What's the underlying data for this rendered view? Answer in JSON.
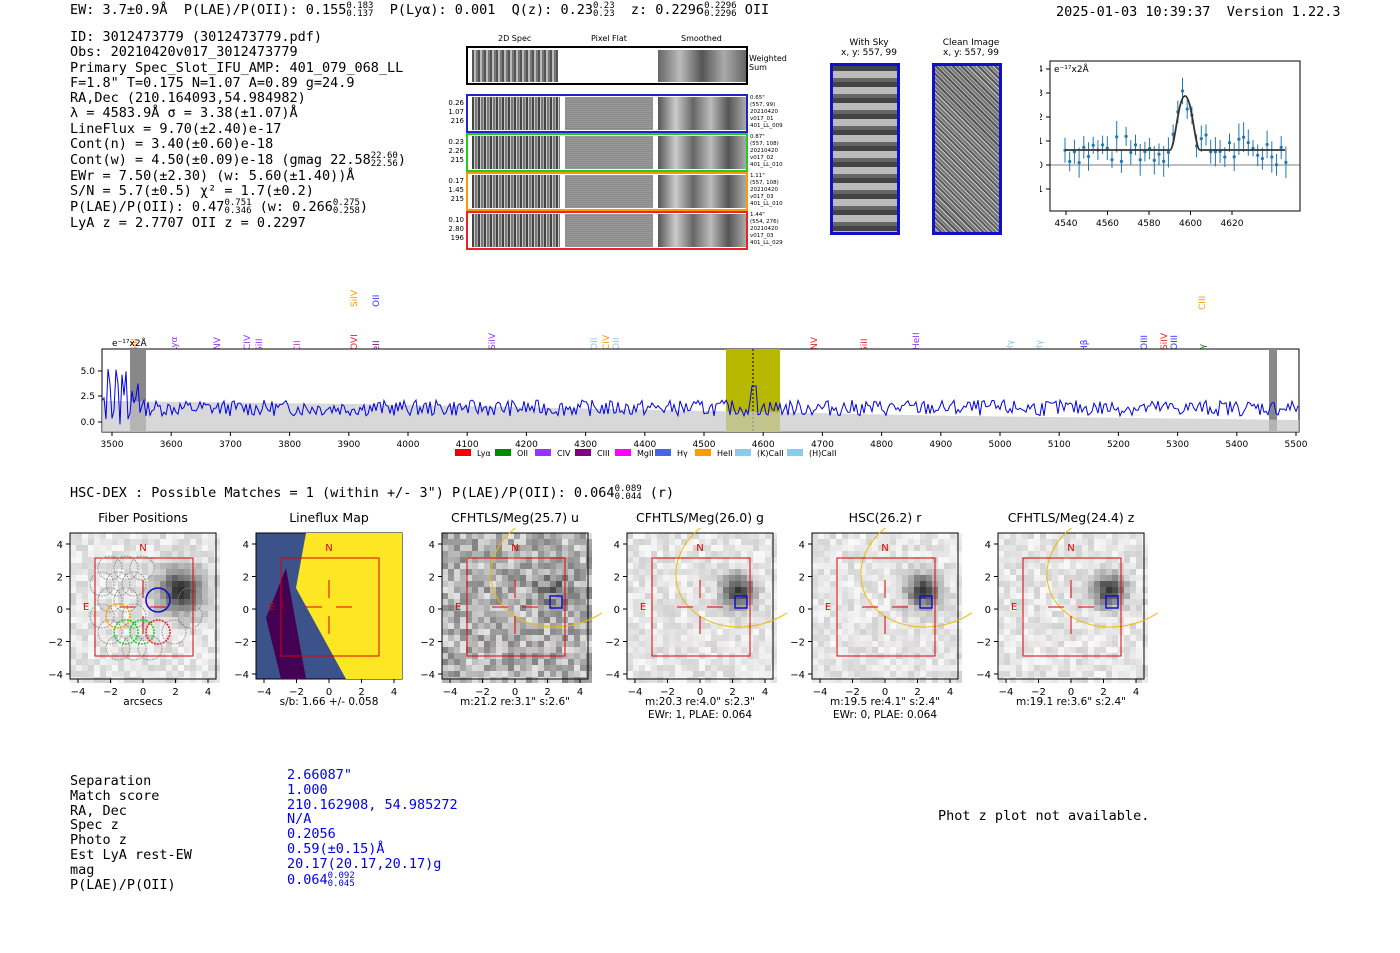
{
  "header": {
    "ew": "EW: 3.7±0.9Å",
    "plae_label": "P(LAE)/P(OII): 0.155",
    "plae_hi": "0.183",
    "plae_lo": "0.137",
    "plya": "P(Lyα): 0.001",
    "qz_label": "Q(z): 0.23",
    "qz_hi": "0.23",
    "qz_lo": "0.23",
    "z_label": "z: 0.2296",
    "z_hi": "0.2296",
    "z_lo": "0.2296",
    "z_line": "OII",
    "timestamp": "2025-01-03 10:39:37",
    "version": "Version 1.22.3"
  },
  "info": {
    "id": "ID: 3012473779 (3012473779.pdf)",
    "obs": "Obs: 20210420v017_3012473779",
    "primary": "Primary Spec_Slot_IFU_AMP: 401_079_068_LL",
    "params": "F=1.8\"  T=0.175  N=1.07  A=0.89  g=24.9",
    "radec": "RA,Dec (210.164093,54.984982)",
    "lambda": "λ = 4583.9Å   σ = 3.38(±1.07)Å",
    "lineflux": "LineFlux = 9.70(±2.40)e-17",
    "contn": "Cont(n) = 3.40(±0.60)e-18",
    "contw": "Cont(w) = 4.50(±0.09)e-18 (gmag 22.58",
    "contw_hi": "22.60",
    "contw_lo": "22.56",
    "contw_end": ")",
    "ewr": "EWr = 7.50(±2.30) (w: 5.60(±1.40))Å",
    "sn": "S/N = 5.7(±0.5)  χ² = 1.7(±0.2)",
    "plae": "P(LAE)/P(OII): 0.47",
    "plae_hi": "0.751",
    "plae_lo": "0.346",
    "plae_w": "(w: 0.266",
    "plae_w_hi": "0.275",
    "plae_w_lo": "0.258",
    "plae_w_end": ")",
    "lya": "LyA z = 2.7707   OII z = 0.2297"
  },
  "spec2d": {
    "col_labels": [
      "2D Spec",
      "Pixel Flat",
      "Smoothed"
    ],
    "weighted": "Weighted Sum",
    "rows": [
      {
        "left": [
          "0.26",
          "1.07",
          "216"
        ],
        "right": [
          "0.65\"",
          "(557, 99)",
          "20210420",
          "v017_01",
          "401_LL_009"
        ],
        "color": "#2222cc"
      },
      {
        "left": [
          "0.23",
          "2.26",
          "215"
        ],
        "right": [
          "0.87\"",
          "(557, 108)",
          "20210420",
          "v017_02",
          "401_LL_010"
        ],
        "color": "#22cc22"
      },
      {
        "left": [
          "0.17",
          "1.45",
          "215"
        ],
        "right": [
          "1.11\"",
          "(557, 108)",
          "20210420",
          "v017_03",
          "401_LL_010"
        ],
        "color": "#ff9900"
      },
      {
        "left": [
          "0.10",
          "2.80",
          "196"
        ],
        "right": [
          "1.44\"",
          "(554, 276)",
          "20210420",
          "v017_03",
          "401_LL_029"
        ],
        "color": "#ee2222"
      }
    ]
  },
  "sky": {
    "with_sky": "With Sky",
    "with_sky_xy": "x, y: 557, 99",
    "clean": "Clean Image",
    "clean_xy": "x, y: 557, 99"
  },
  "zoom_plot": {
    "ylabel": "e⁻¹⁷x2Å",
    "yticks": [
      "4",
      "3",
      "2",
      "1",
      "0",
      "−1"
    ],
    "xticks": [
      "4540",
      "4560",
      "4580",
      "4600",
      "4620"
    ]
  },
  "full_spec": {
    "ylabel": "e⁻¹⁷x2Å",
    "yticks": [
      "5.0",
      "2.5",
      "0.0"
    ],
    "xticks": [
      "3500",
      "3600",
      "3700",
      "3800",
      "3900",
      "4000",
      "4100",
      "4200",
      "4300",
      "4400",
      "4500",
      "4600",
      "4700",
      "4800",
      "4900",
      "5000",
      "5100",
      "5200",
      "5300",
      "5400",
      "5500"
    ],
    "lines": [
      {
        "label": "SiII",
        "color": "#ff9900"
      },
      {
        "label": "Lyα",
        "color": "#9933ff"
      },
      {
        "label": "NV",
        "color": "#9933ff"
      },
      {
        "label": "CIV",
        "color": "#9933ff"
      },
      {
        "label": "SiII",
        "color": "#9933ff"
      },
      {
        "label": "CII",
        "color": "#cc33cc"
      },
      {
        "label": "SiIV",
        "color": "#ff9900"
      },
      {
        "label": "OVI",
        "color": "#ee2222"
      },
      {
        "label": "OII",
        "color": "#3333ff"
      },
      {
        "label": "HeII",
        "color": "#990099"
      },
      {
        "label": "SiIV",
        "color": "#9933ff"
      },
      {
        "label": "OII",
        "color": "#88ccee"
      },
      {
        "label": "CIV",
        "color": "#ff9900"
      },
      {
        "label": "OII",
        "color": "#88ccee"
      },
      {
        "label": "NV",
        "color": "#ee2222"
      },
      {
        "label": "SiII",
        "color": "#ee2222"
      },
      {
        "label": "HeII",
        "color": "#9933ff"
      },
      {
        "label": "Hγ",
        "color": "#88ccee"
      },
      {
        "label": "Hγ",
        "color": "#88ccee"
      },
      {
        "label": "Hβ",
        "color": "#3333ff"
      },
      {
        "label": "OIII",
        "color": "#3333ff"
      },
      {
        "label": "SiIV",
        "color": "#ee2222"
      },
      {
        "label": "OIII",
        "color": "#3333ff"
      },
      {
        "label": "CIII",
        "color": "#ff9900"
      },
      {
        "label": "Hγ",
        "color": "#008800"
      }
    ],
    "legend": [
      {
        "label": "Lyα",
        "color": "#ee0000"
      },
      {
        "label": "OII",
        "color": "#008800"
      },
      {
        "label": "CIV",
        "color": "#9933ff"
      },
      {
        "label": "CIII",
        "color": "#800080"
      },
      {
        "label": "MgII",
        "color": "#ff00ff"
      },
      {
        "label": "Hγ",
        "color": "#4466ee"
      },
      {
        "label": "HeII",
        "color": "#ff9900"
      },
      {
        "label": "(K)CaII",
        "color": "#88ccee"
      },
      {
        "label": "(H)CaII",
        "color": "#88ccee"
      }
    ]
  },
  "hsc": {
    "title": "HSC-DEX : Possible Matches = 1 (within +/- 3\")  P(LAE)/P(OII): 0.064",
    "hi": "0.089",
    "lo": "0.044",
    "band": "(r)"
  },
  "panels": [
    {
      "title": "Fiber Positions",
      "caption1": "arcsecs",
      "caption2": ""
    },
    {
      "title": "Lineflux Map",
      "caption1": "s/b: 1.66 +/- 0.058",
      "caption2": ""
    },
    {
      "title": "CFHTLS/Meg(25.7) u",
      "caption1": "m:21.2  re:3.1\"  s:2.6\"",
      "caption2": ""
    },
    {
      "title": "CFHTLS/Meg(26.0) g",
      "caption1": "m:20.3  re:4.0\"  s:2.3\"",
      "caption2": "EWr: 1, PLAE: 0.064"
    },
    {
      "title": "HSC(26.2) r",
      "caption1": "m:19.5  re:4.1\"  s:2.4\"",
      "caption2": "EWr: 0, PLAE: 0.064"
    },
    {
      "title": "CFHTLS/Meg(24.4) z",
      "caption1": "m:19.1  re:3.6\"  s:2.4\"",
      "caption2": ""
    }
  ],
  "panel_axes": {
    "yticks": [
      "4",
      "2",
      "0",
      "−2",
      "−4"
    ],
    "xticks": [
      "−4",
      "−2",
      "0",
      "2",
      "4"
    ],
    "n_label": "N",
    "e_label": "E"
  },
  "match": {
    "labels": [
      "Separation",
      "Match score",
      "RA, Dec",
      "Spec z",
      "Photo z",
      "Est LyA rest-EW",
      "mag",
      "P(LAE)/P(OII)"
    ],
    "values": [
      "2.66087\"",
      "1.000",
      "210.162908, 54.985272",
      "N/A",
      "0.2056",
      "0.59(±0.15)Å",
      "20.17(20.17,20.17)g",
      "0.064"
    ],
    "plae_hi": "0.092",
    "plae_lo": "0.045",
    "photz_na": "Phot z plot not available."
  },
  "colors": {
    "fiber_blue": "#2222cc",
    "fiber_green": "#22cc22",
    "fiber_orange": "#ff9900",
    "fiber_red": "#ee2222",
    "spectrum": "#0000ee",
    "highlight": "#b8b800",
    "box_red": "#dd0000",
    "ellipse": "#eebb00"
  }
}
